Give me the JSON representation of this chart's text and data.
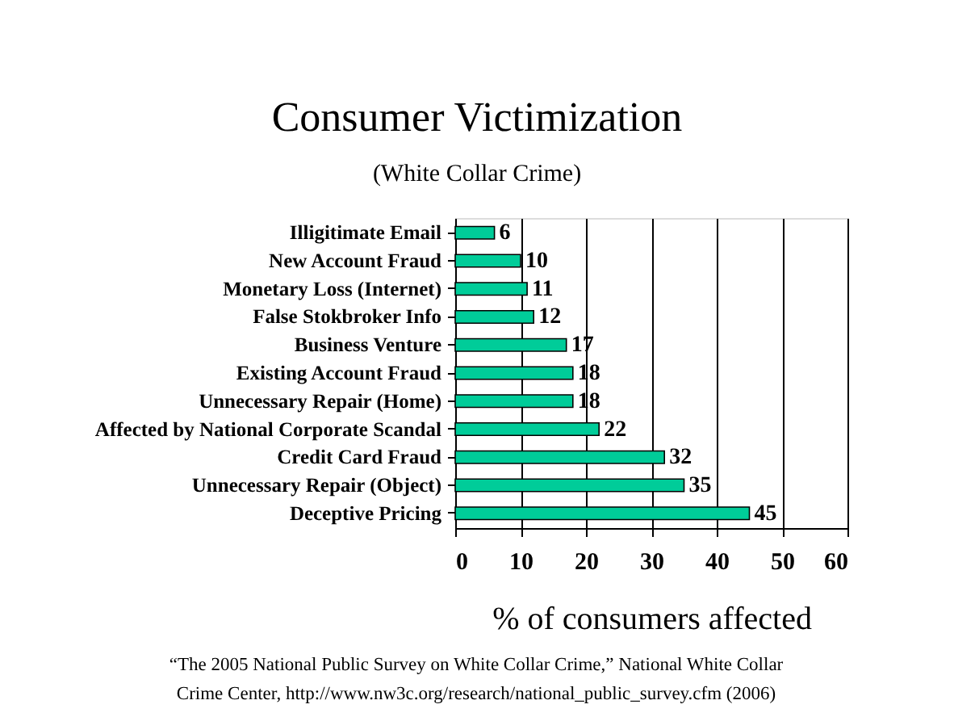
{
  "chart_data": {
    "type": "bar",
    "orientation": "horizontal",
    "title": "Consumer Victimization",
    "subtitle": "(White Collar Crime)",
    "xlabel": "% of consumers affected",
    "categories": [
      "Illigitimate Email",
      "New Account Fraud",
      "Monetary Loss (Internet)",
      "False Stokbroker Info",
      "Business Venture",
      "Existing Account Fraud",
      "Unnecessary Repair (Home)",
      "Affected by National Corporate Scandal",
      "Credit Card Fraud",
      "Unnecessary Repair (Object)",
      "Deceptive Pricing"
    ],
    "values": [
      6,
      10,
      11,
      12,
      17,
      18,
      18,
      22,
      32,
      35,
      45
    ],
    "color": "#00cc99",
    "xlim": [
      0,
      60
    ],
    "xticks": [
      0,
      10,
      20,
      30,
      40,
      50,
      60
    ],
    "grid": "x",
    "data_labels": true,
    "annotations": [
      "“The 2005 National Public Survey on White Collar Crime,” National White Collar",
      "Crime Center, http://www.nw3c.org/research/national_public_survey.cfm (2006)"
    ]
  }
}
